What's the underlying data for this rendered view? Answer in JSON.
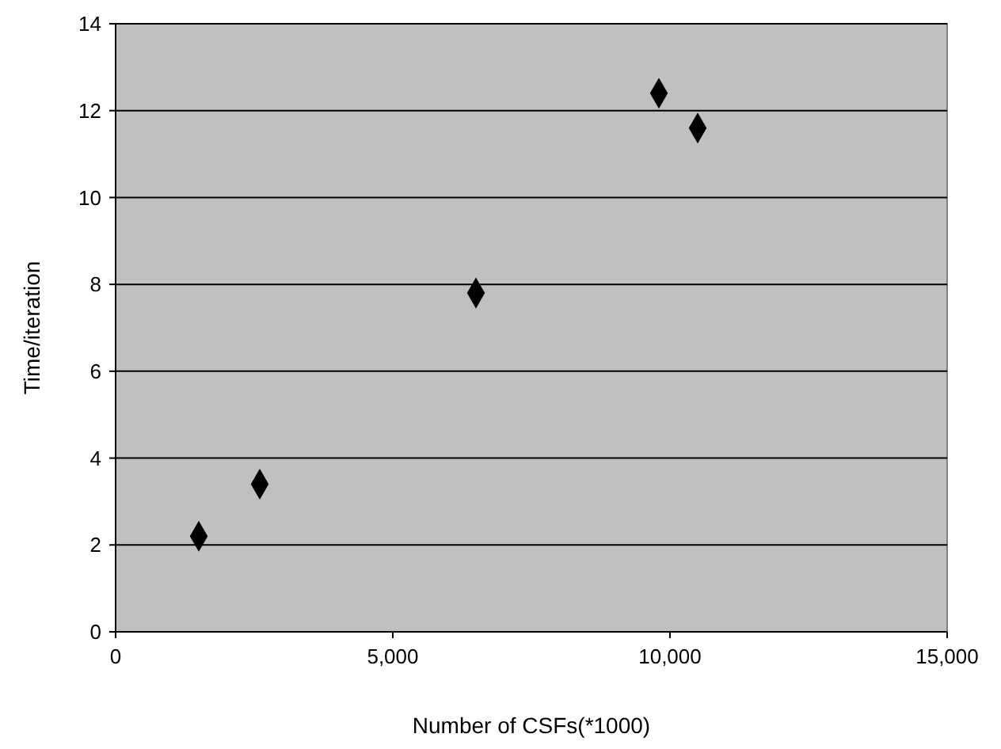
{
  "chart_data": {
    "type": "scatter",
    "xlabel": "Number of CSFs(*1000)",
    "ylabel": "Time/iteration",
    "x": [
      1500,
      2600,
      6500,
      9800,
      10500
    ],
    "series": [
      {
        "color": "#000000",
        "values": [
          2.2,
          3.4,
          7.8,
          12.4,
          11.6
        ]
      }
    ],
    "xlim": [
      0,
      15000
    ],
    "xticks": [
      {
        "value": 0,
        "label": "0"
      },
      {
        "value": 5000,
        "label": "5,000"
      },
      {
        "value": 10000,
        "label": "10,000"
      },
      {
        "value": 15000,
        "label": "15,000"
      }
    ],
    "ylim": [
      0,
      14
    ],
    "yticks": [
      0,
      2,
      4,
      6,
      8,
      10,
      12,
      14
    ],
    "grid": "y",
    "marker": "diamond"
  }
}
